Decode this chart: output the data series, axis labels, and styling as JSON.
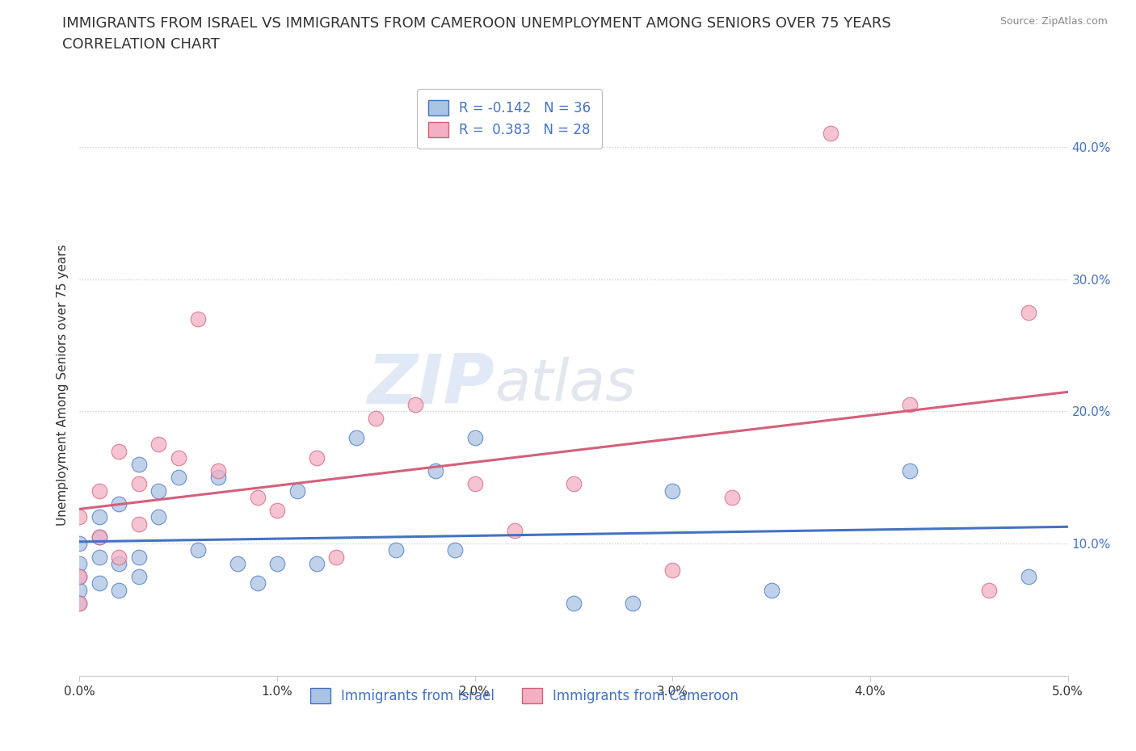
{
  "title_line1": "IMMIGRANTS FROM ISRAEL VS IMMIGRANTS FROM CAMEROON UNEMPLOYMENT AMONG SENIORS OVER 75 YEARS",
  "title_line2": "CORRELATION CHART",
  "source": "Source: ZipAtlas.com",
  "ylabel": "Unemployment Among Seniors over 75 years",
  "xlim": [
    0.0,
    0.05
  ],
  "ylim": [
    0.0,
    0.44
  ],
  "xticks": [
    0.0,
    0.01,
    0.02,
    0.03,
    0.04,
    0.05
  ],
  "xtick_labels": [
    "0.0%",
    "1.0%",
    "2.0%",
    "3.0%",
    "4.0%",
    "5.0%"
  ],
  "yticks": [
    0.0,
    0.1,
    0.2,
    0.3,
    0.4
  ],
  "ytick_labels": [
    "",
    "10.0%",
    "20.0%",
    "30.0%",
    "40.0%"
  ],
  "israel_R": -0.142,
  "israel_N": 36,
  "cameroon_R": 0.383,
  "cameroon_N": 28,
  "israel_fill_color": "#aac4e4",
  "cameroon_fill_color": "#f4afc4",
  "israel_edge_color": "#4472c4",
  "cameroon_edge_color": "#d4607a",
  "legend_israel_label": "Immigrants from Israel",
  "legend_cameroon_label": "Immigrants from Cameroon",
  "israel_x": [
    0.0,
    0.0,
    0.0,
    0.0,
    0.0,
    0.001,
    0.001,
    0.001,
    0.001,
    0.002,
    0.002,
    0.002,
    0.003,
    0.003,
    0.003,
    0.004,
    0.004,
    0.005,
    0.006,
    0.007,
    0.008,
    0.009,
    0.01,
    0.011,
    0.012,
    0.014,
    0.016,
    0.018,
    0.019,
    0.02,
    0.025,
    0.028,
    0.03,
    0.035,
    0.042,
    0.048
  ],
  "israel_y": [
    0.1,
    0.085,
    0.075,
    0.065,
    0.055,
    0.12,
    0.105,
    0.09,
    0.07,
    0.13,
    0.085,
    0.065,
    0.16,
    0.09,
    0.075,
    0.14,
    0.12,
    0.15,
    0.095,
    0.15,
    0.085,
    0.07,
    0.085,
    0.14,
    0.085,
    0.18,
    0.095,
    0.155,
    0.095,
    0.18,
    0.055,
    0.055,
    0.14,
    0.065,
    0.155,
    0.075
  ],
  "cameroon_x": [
    0.0,
    0.0,
    0.0,
    0.001,
    0.001,
    0.002,
    0.002,
    0.003,
    0.003,
    0.004,
    0.005,
    0.006,
    0.007,
    0.009,
    0.01,
    0.012,
    0.013,
    0.015,
    0.017,
    0.02,
    0.022,
    0.025,
    0.03,
    0.033,
    0.038,
    0.042,
    0.046,
    0.048
  ],
  "cameroon_y": [
    0.12,
    0.075,
    0.055,
    0.14,
    0.105,
    0.17,
    0.09,
    0.145,
    0.115,
    0.175,
    0.165,
    0.27,
    0.155,
    0.135,
    0.125,
    0.165,
    0.09,
    0.195,
    0.205,
    0.145,
    0.11,
    0.145,
    0.08,
    0.135,
    0.41,
    0.205,
    0.065,
    0.275
  ],
  "watermark_zip": "ZIP",
  "watermark_atlas": "atlas",
  "title_fontsize": 13,
  "axis_label_fontsize": 11,
  "tick_fontsize": 11,
  "legend_fontsize": 12,
  "grid_color": "#cccccc",
  "label_color": "#333333",
  "value_color": "#4472c4",
  "background_color": "#ffffff"
}
